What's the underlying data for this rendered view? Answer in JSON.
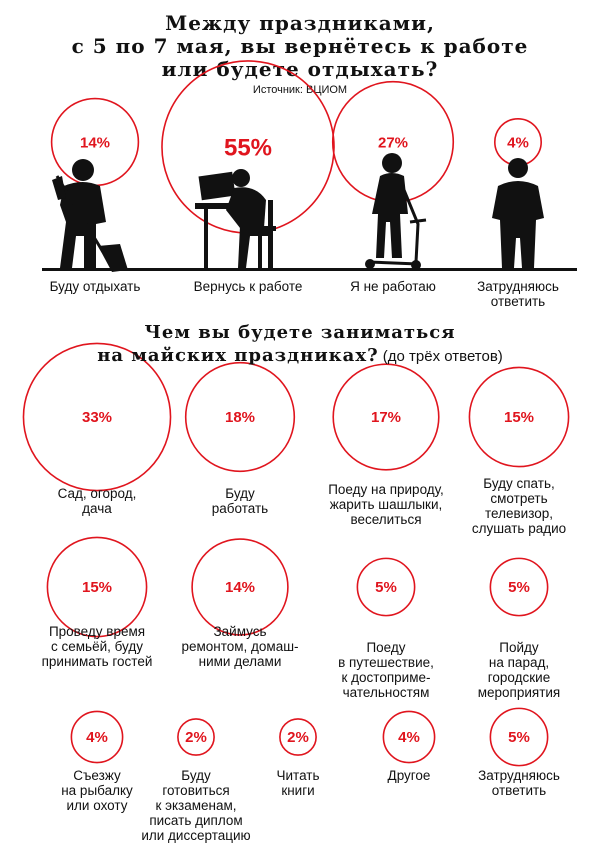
{
  "title": {
    "lines": [
      "Между праздниками,",
      "с 5 по 7 мая, вы вернётесь к работе",
      "или будете отдыхать?"
    ],
    "source": "Источник: ВЦИОМ"
  },
  "question2": {
    "line1": "Чем вы будете заниматься",
    "line2": "на майских праздниках?",
    "note": " (до трёх ответов)"
  },
  "colors": {
    "accent": "#e0151e",
    "ink": "#111111"
  },
  "chart_data": [
    {
      "type": "bubble",
      "title": "Между праздниками, с 5 по 7 мая, вы вернётесь к работе или будете отдыхать?",
      "unit": "%",
      "categories": [
        "Буду отдыхать",
        "Вернусь к работе",
        "Я не работаю",
        "Затрудняюсь ответить"
      ],
      "values": [
        14,
        55,
        27,
        4
      ],
      "labels": [
        "14%",
        "55%",
        "27%",
        "4%"
      ],
      "icons": [
        "person-with-shovel-icon",
        "person-at-computer-icon",
        "person-on-scooter-icon",
        "person-standing-icon"
      ]
    },
    {
      "type": "bubble",
      "title": "Чем вы будете заниматься на майских праздниках? (до трёх ответов)",
      "unit": "%",
      "categories": [
        "Сад, огород,\nдача",
        "Буду\nработать",
        "Поеду на природу,\nжарить шашлыки,\nвеселиться",
        "Буду спать,\nсмотреть\nтелевизор,\nслушать радио",
        "Проведу время\nс семьёй, буду\nпринимать гостей",
        "Займусь\nремонтом, домаш-\nними делами",
        "Поеду\nв путешествие,\nк достоприме-\nчательностям",
        "Пойду\nна парад,\nгородские\nмероприятия",
        "Съезжу\nна рыбалку\nили охоту",
        "Буду\nготовиться\nк экзаменам,\nписать диплом\nили диссертацию",
        "Читать\nкниги",
        "Другое",
        "Затрудняюсь\nответить"
      ],
      "values": [
        33,
        18,
        17,
        15,
        15,
        14,
        5,
        5,
        4,
        2,
        2,
        4,
        5
      ],
      "labels": [
        "33%",
        "18%",
        "17%",
        "15%",
        "15%",
        "14%",
        "5%",
        "5%",
        "4%",
        "2%",
        "2%",
        "4%",
        "5%"
      ]
    }
  ]
}
